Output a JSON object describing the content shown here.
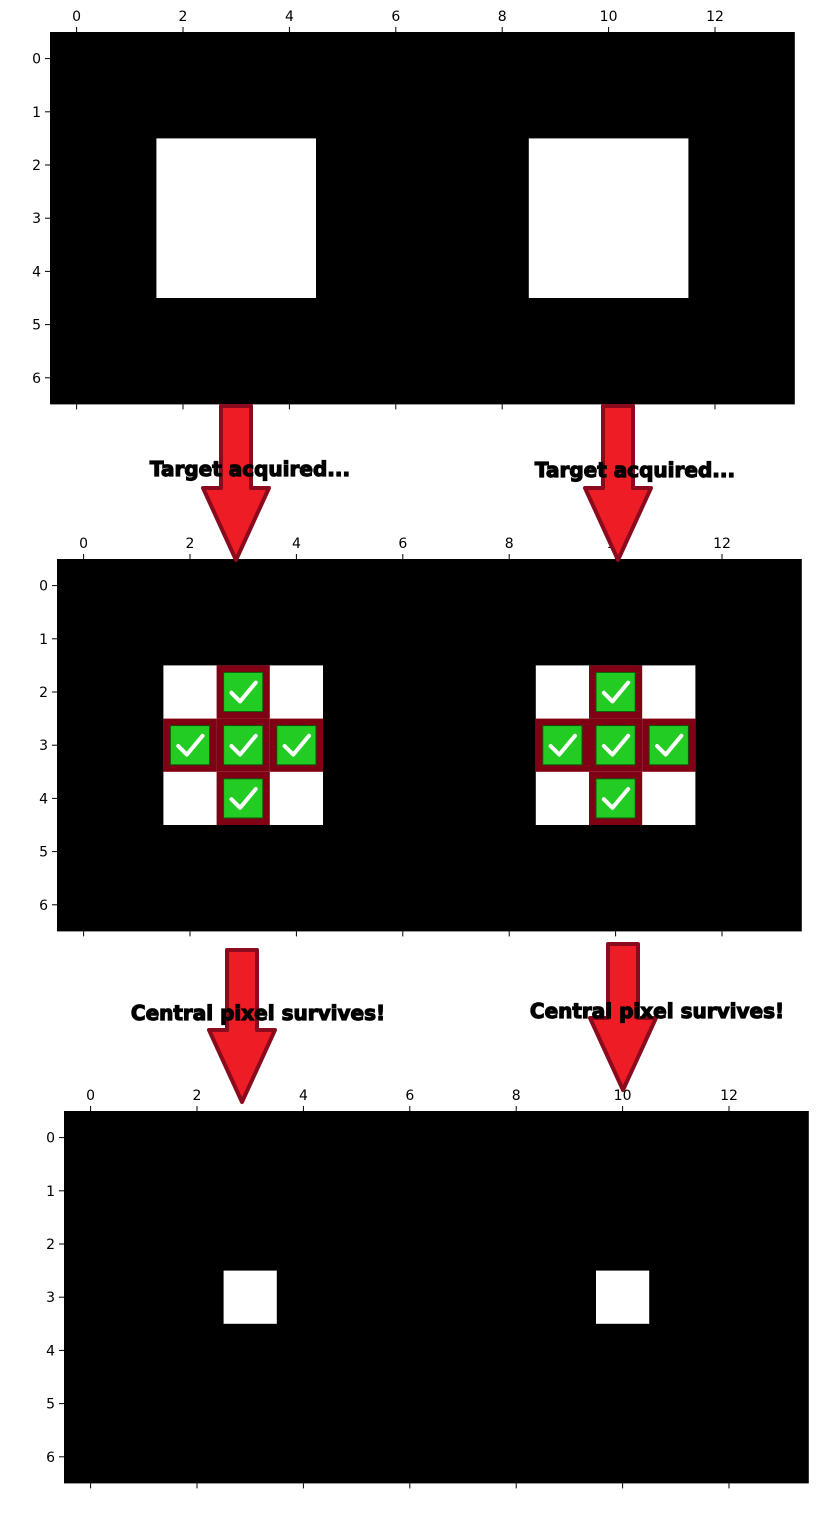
{
  "colors": {
    "background": "#000000",
    "pixel_on": "#ffffff",
    "structuring_outline": "#800014",
    "check_fill": "#22cc22",
    "arrow_fill": "#ee1c25",
    "arrow_stroke": "#8b0a1e",
    "tick_text": "#000000"
  },
  "grid": {
    "rows": 7,
    "cols": 14,
    "x_ticks": [
      "0",
      "2",
      "4",
      "6",
      "8",
      "10",
      "12"
    ],
    "y_ticks": [
      "0",
      "1",
      "2",
      "3",
      "4",
      "5",
      "6"
    ]
  },
  "panels": [
    {
      "name": "input",
      "white_blocks": [
        {
          "row_start": 2,
          "row_end": 4,
          "col_start": 2,
          "col_end": 4
        },
        {
          "row_start": 2,
          "row_end": 4,
          "col_start": 9,
          "col_end": 11
        }
      ]
    },
    {
      "name": "matching",
      "white_blocks": [
        {
          "row_start": 2,
          "row_end": 4,
          "col_start": 2,
          "col_end": 4
        },
        {
          "row_start": 2,
          "row_end": 4,
          "col_start": 9,
          "col_end": 11
        }
      ],
      "structuring_element_centers": [
        {
          "row": 3,
          "col": 3
        },
        {
          "row": 3,
          "col": 10
        }
      ],
      "check_icon": "check-mark-icon"
    },
    {
      "name": "output",
      "white_blocks": [
        {
          "row_start": 3,
          "row_end": 3,
          "col_start": 3,
          "col_end": 3
        },
        {
          "row_start": 3,
          "row_end": 3,
          "col_start": 10,
          "col_end": 10
        }
      ]
    }
  ],
  "captions": {
    "target_left": "Target acquired...",
    "target_right": "Target acquired...",
    "survive_left": "Central pixel survives!",
    "survive_right": "Central pixel survives!"
  },
  "arrow_icon": "down-arrow-icon"
}
